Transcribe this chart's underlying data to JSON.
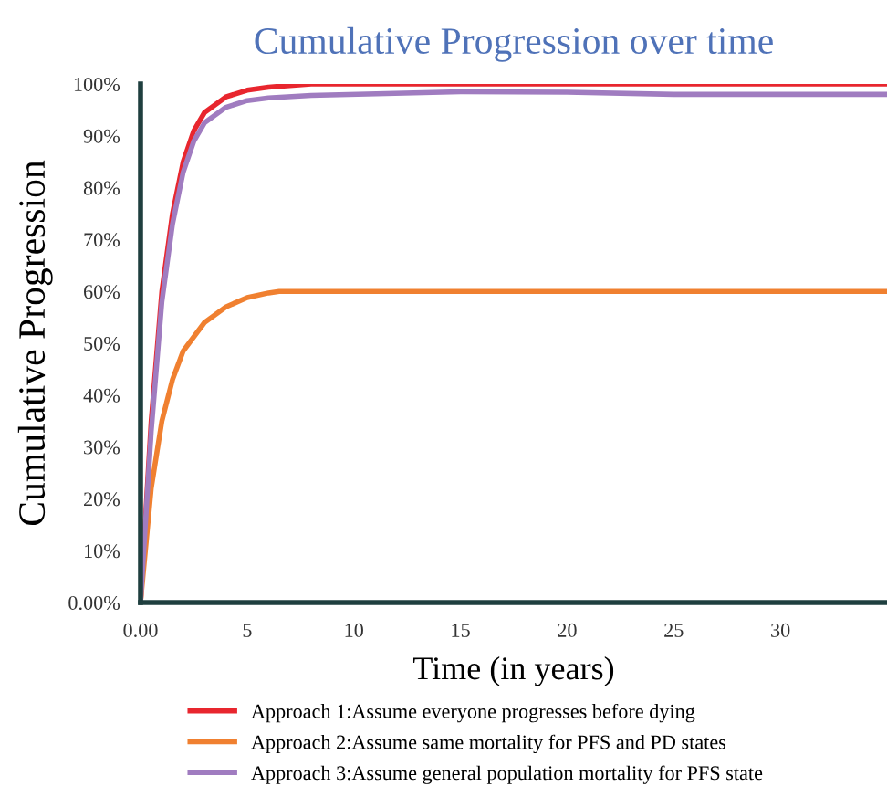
{
  "chart_data": {
    "type": "line",
    "title": "Cumulative Progression over time",
    "xlabel": "Time (in years)",
    "ylabel": "Cumulative Progression",
    "xlim": [
      0,
      35
    ],
    "xticks": [
      {
        "value": 0,
        "label": "0.00"
      },
      5,
      10,
      15,
      20,
      25,
      30
    ],
    "ylim": [
      0,
      100
    ],
    "yticks": [
      {
        "value": 0,
        "label": "0.00%"
      },
      {
        "value": 10,
        "label": "10%"
      },
      {
        "value": 20,
        "label": "20%"
      },
      {
        "value": 30,
        "label": "30%"
      },
      {
        "value": 40,
        "label": "40%"
      },
      {
        "value": 50,
        "label": "50%"
      },
      {
        "value": 60,
        "label": "60%"
      },
      {
        "value": 70,
        "label": "70%"
      },
      {
        "value": 80,
        "label": "80%"
      },
      {
        "value": 90,
        "label": "90%"
      },
      {
        "value": 100,
        "label": "100%"
      }
    ],
    "grid": false,
    "legend": "bottom",
    "marker": "none",
    "line_style": "solid",
    "series": [
      {
        "name": "Approach 1:Assume everyone progresses before dying",
        "color": "#e8262e",
        "x": [
          0,
          0.5,
          1,
          1.5,
          2,
          2.5,
          3,
          4,
          5,
          6,
          8,
          15,
          35
        ],
        "values": [
          0,
          35,
          60,
          75,
          85,
          91,
          94.5,
          97.5,
          98.8,
          99.4,
          100,
          100,
          100
        ]
      },
      {
        "name": "Approach 2:Assume same mortality for PFS and PD states",
        "color": "#f08030",
        "x": [
          0,
          0.5,
          1,
          1.5,
          2,
          3,
          4,
          5,
          6,
          6.5,
          35
        ],
        "values": [
          0,
          22,
          35,
          43,
          48.5,
          54,
          57,
          58.8,
          59.7,
          60,
          60
        ]
      },
      {
        "name": "Approach 3:Assume general population mortality for PFS state",
        "color": "#a07cc0",
        "x": [
          0,
          0.5,
          1,
          1.5,
          2,
          2.5,
          3,
          4,
          5,
          6,
          8,
          15,
          20,
          25,
          35
        ],
        "values": [
          0,
          33,
          58,
          73,
          83,
          89,
          92.5,
          95.5,
          96.8,
          97.3,
          97.8,
          98.5,
          98.4,
          98,
          98
        ]
      }
    ]
  }
}
